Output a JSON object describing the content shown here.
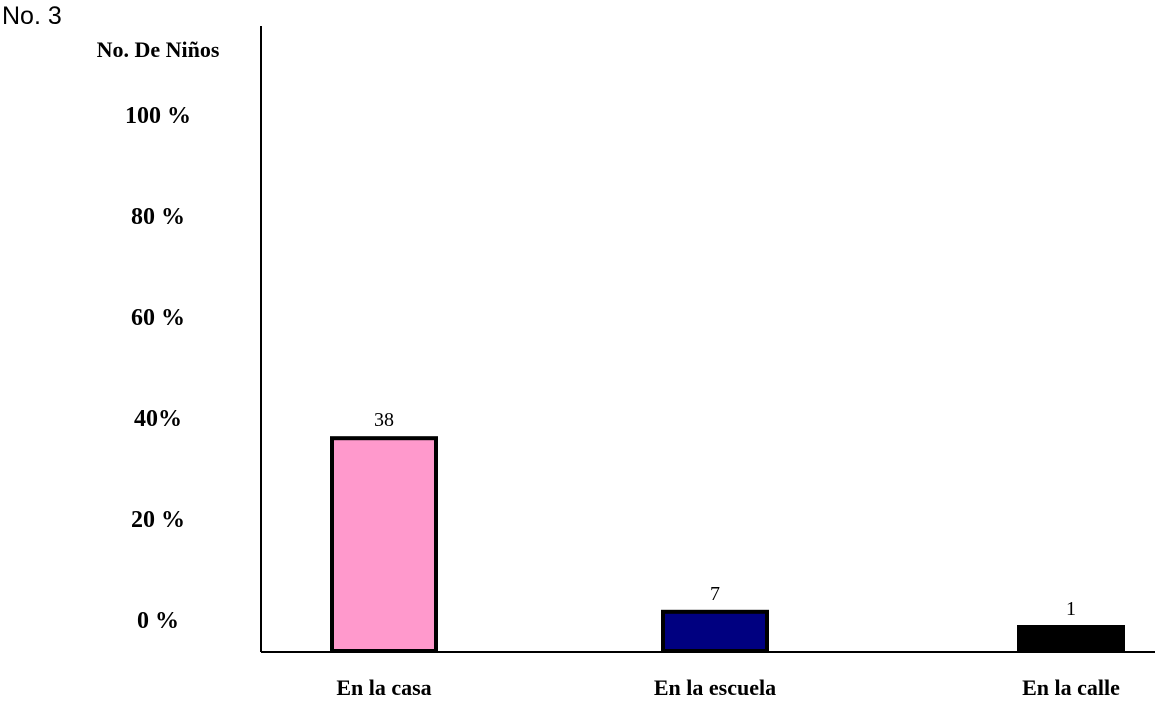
{
  "figure_number": "No. 3",
  "chart_data": {
    "type": "bar",
    "title": "",
    "ylabel": "No. De Niños",
    "xlabel": "",
    "y_tick_labels": [
      "0 %",
      "20 %",
      "40%",
      "60 %",
      "80 %",
      "100 %"
    ],
    "categories": [
      "En la casa",
      "En la escuela",
      "En la calle"
    ],
    "values": [
      38,
      7,
      1
    ],
    "data_labels": [
      "38",
      "7",
      "1"
    ],
    "bar_colors": [
      "#ff99cc",
      "#000080",
      "#000000"
    ],
    "bar_border_color": "#000000",
    "grid": false,
    "legend": "none"
  }
}
